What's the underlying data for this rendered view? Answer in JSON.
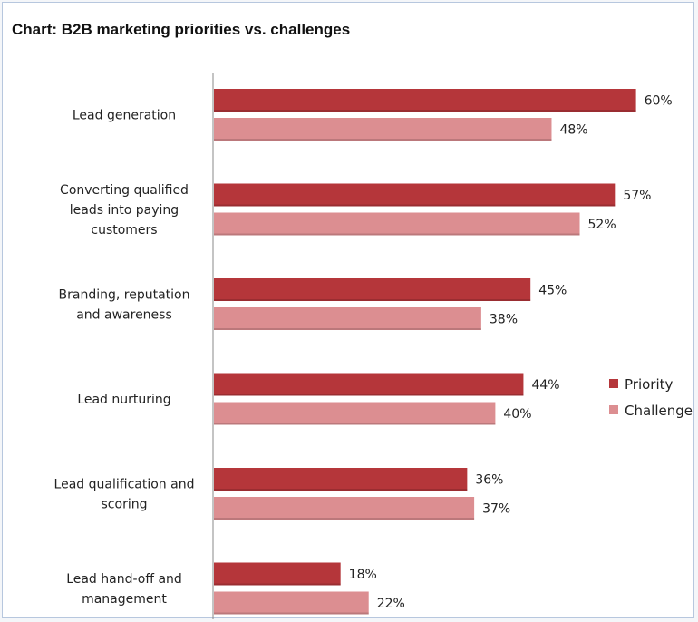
{
  "chart_data": {
    "type": "bar",
    "orientation": "horizontal",
    "title": "Chart: B2B marketing priorities vs. challenges",
    "categories": [
      [
        "Lead generation"
      ],
      [
        "Converting qualified",
        "leads into paying",
        "customers"
      ],
      [
        "Branding, reputation",
        "and awareness"
      ],
      [
        "Lead nurturing"
      ],
      [
        "Lead qualification and",
        "scoring"
      ],
      [
        "Lead hand-off and",
        "management"
      ]
    ],
    "series": [
      {
        "name": "Priority",
        "values": [
          60,
          57,
          45,
          44,
          36,
          18
        ],
        "labels": [
          "60%",
          "57%",
          "45%",
          "44%",
          "36%",
          "18%"
        ],
        "color": "#b5363a"
      },
      {
        "name": "Challenge",
        "values": [
          48,
          52,
          38,
          40,
          37,
          22
        ],
        "labels": [
          "48%",
          "52%",
          "38%",
          "40%",
          "37%",
          "22%"
        ],
        "color": "#dc8e91"
      }
    ],
    "xlabel": "",
    "ylabel": "",
    "xlim": [
      0,
      60
    ],
    "grid": false,
    "legend_position": "right"
  }
}
